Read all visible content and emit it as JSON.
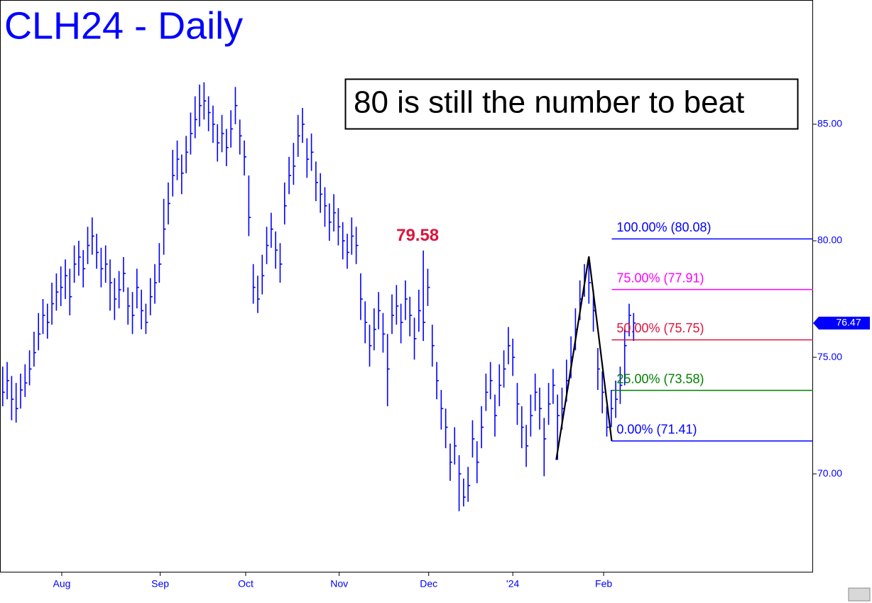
{
  "chart_data": {
    "type": "ohlc",
    "title": "CLH24 - Daily",
    "note": "80 is still the number to beat",
    "color": "#0000ff",
    "xlim": [
      -0.6,
      181.1
    ],
    "ylim": [
      65.8,
      90.33
    ],
    "yticks": [
      {
        "value": 70,
        "label": "70.00"
      },
      {
        "value": 75,
        "label": "75.00"
      },
      {
        "value": 80,
        "label": "80.00"
      },
      {
        "value": 85,
        "label": "85.00"
      }
    ],
    "xticks": [
      {
        "value": 13.2,
        "label": "Aug"
      },
      {
        "value": 35.2,
        "label": "Sep"
      },
      {
        "value": 54.3,
        "label": "Oct"
      },
      {
        "value": 75.2,
        "label": "Nov"
      },
      {
        "value": 95.2,
        "label": "Dec"
      },
      {
        "value": 114,
        "label": "'24"
      },
      {
        "value": 134.3,
        "label": "Feb"
      }
    ],
    "high": [
      74.6,
      74.8,
      74.2,
      73.9,
      74.3,
      74.7,
      75.3,
      76.1,
      76.9,
      77.5,
      77.3,
      78.2,
      78.6,
      78.9,
      79.2,
      78.8,
      79.8,
      80.0,
      79.6,
      80.6,
      81.0,
      80.3,
      79.7,
      79.8,
      79.2,
      78.4,
      78.7,
      79.3,
      78.0,
      77.8,
      78.8,
      77.9,
      77.3,
      78.4,
      79.0,
      79.9,
      81.8,
      82.5,
      83.9,
      84.3,
      83.7,
      84.5,
      85.5,
      86.2,
      86.7,
      86.8,
      86.2,
      85.8,
      85.0,
      85.4,
      84.8,
      85.6,
      86.6,
      85.2,
      84.3,
      82.8,
      79.0,
      78.5,
      79.4,
      80.6,
      81.2,
      80.4,
      79.9,
      82.5,
      83.6,
      84.2,
      85.4,
      85.7,
      84.4,
      84.6,
      83.4,
      82.9,
      82.3,
      81.6,
      82.0,
      81.4,
      80.8,
      80.3,
      81.0,
      80.6,
      78.6,
      77.4,
      76.4,
      77.1,
      77.8,
      76.9,
      76.0,
      77.7,
      78.1,
      77.3,
      78.3,
      77.6,
      76.7,
      77.9,
      79.58,
      78.8,
      76.4,
      74.8,
      73.6,
      72.8,
      71.3,
      72.0,
      70.8,
      69.8,
      70.3,
      72.3,
      71.4,
      72.9,
      74.3,
      74.8,
      73.4,
      74.7,
      75.3,
      76.3,
      75.8,
      73.9,
      72.9,
      72.1,
      73.4,
      74.3,
      73.7,
      72.4,
      73.9,
      74.5,
      73.4,
      73.7,
      74.9,
      75.9,
      77.1,
      78.3,
      79.0,
      79.2,
      77.9,
      75.4,
      74.4,
      72.9,
      73.6,
      74.0,
      74.6,
      76.2,
      77.3,
      76.9
    ],
    "low": [
      72.9,
      73.2,
      72.3,
      72.2,
      72.8,
      73.3,
      73.8,
      74.6,
      75.3,
      76.0,
      75.8,
      76.4,
      77.0,
      77.2,
      77.5,
      76.8,
      78.2,
      78.5,
      78.0,
      79.0,
      79.4,
      78.8,
      78.0,
      78.2,
      77.0,
      76.6,
      77.1,
      77.8,
      76.4,
      76.0,
      77.1,
      76.2,
      76.0,
      76.8,
      77.3,
      78.2,
      79.4,
      80.7,
      81.9,
      82.6,
      82.0,
      82.9,
      83.7,
      84.4,
      84.9,
      85.2,
      84.7,
      84.2,
      83.4,
      83.8,
      83.2,
      84.0,
      85.0,
      83.7,
      82.8,
      80.2,
      77.3,
      76.9,
      77.7,
      79.0,
      79.7,
      78.8,
      78.2,
      80.7,
      82.0,
      82.4,
      83.6,
      84.2,
      82.7,
      83.0,
      81.7,
      81.2,
      80.6,
      80.0,
      80.4,
      79.8,
      79.2,
      78.8,
      79.4,
      79.0,
      76.6,
      75.6,
      74.6,
      75.3,
      76.2,
      75.2,
      72.9,
      76.0,
      76.4,
      75.6,
      76.6,
      75.9,
      74.9,
      76.1,
      75.7,
      77.2,
      74.6,
      73.2,
      71.9,
      71.1,
      69.7,
      70.4,
      68.4,
      68.6,
      68.8,
      70.7,
      69.6,
      71.1,
      72.7,
      73.2,
      71.6,
      72.9,
      73.7,
      74.7,
      74.2,
      72.1,
      71.1,
      70.3,
      71.6,
      72.7,
      71.9,
      69.9,
      72.1,
      73.0,
      70.6,
      71.9,
      73.1,
      74.1,
      75.3,
      76.6,
      77.6,
      77.3,
      76.1,
      73.6,
      72.6,
      71.6,
      72.0,
      72.4,
      73.0,
      73.8,
      75.9,
      75.7
    ],
    "close": [
      73.5,
      74.0,
      73.2,
      72.8,
      73.6,
      73.9,
      74.5,
      75.2,
      76.0,
      76.8,
      76.5,
      77.3,
      77.8,
      78.0,
      78.5,
      77.6,
      79.0,
      79.3,
      78.8,
      79.8,
      80.2,
      79.5,
      78.8,
      79.0,
      78.2,
      77.5,
      77.9,
      78.6,
      77.2,
      76.8,
      78.0,
      77.0,
      76.5,
      77.6,
      78.2,
      79.0,
      80.5,
      81.6,
      82.8,
      83.5,
      82.9,
      83.8,
      84.6,
      85.2,
      85.8,
      86.0,
      85.5,
      85.0,
      84.2,
      84.6,
      84.0,
      84.8,
      85.8,
      84.5,
      83.6,
      81.0,
      78.0,
      77.5,
      78.5,
      79.8,
      80.5,
      79.6,
      79.0,
      81.5,
      82.8,
      83.2,
      84.5,
      85.0,
      83.5,
      83.8,
      82.5,
      82.0,
      81.5,
      80.8,
      81.2,
      80.6,
      80.0,
      79.5,
      80.2,
      79.8,
      77.5,
      76.5,
      75.5,
      76.2,
      77.0,
      76.0,
      74.5,
      76.8,
      77.2,
      76.5,
      77.5,
      76.8,
      75.8,
      77.0,
      76.5,
      78.0,
      75.5,
      74.0,
      72.8,
      72.0,
      70.5,
      71.2,
      70.0,
      69.0,
      69.5,
      71.5,
      70.5,
      72.0,
      73.5,
      74.0,
      72.5,
      73.8,
      74.5,
      75.5,
      75.0,
      73.0,
      72.0,
      71.2,
      72.5,
      73.5,
      72.8,
      71.5,
      73.0,
      73.8,
      72.5,
      72.8,
      74.0,
      75.0,
      76.2,
      77.5,
      78.5,
      78.2,
      77.0,
      74.5,
      73.5,
      72.0,
      72.8,
      73.2,
      73.8,
      75.5,
      76.8,
      76.47
    ],
    "peak_index": 94,
    "swing": {
      "x": [
        123.7,
        131,
        136.1
      ],
      "values": [
        70.6,
        79.33,
        71.41
      ],
      "color": "#000000"
    },
    "fib_start": 136.1,
    "levels": [
      {
        "value": 80.08,
        "label": "100.00% (80.08)",
        "color": "#0000ff"
      },
      {
        "value": 77.91,
        "label": "75.00% (77.91)",
        "color": "#ff00ff"
      },
      {
        "value": 75.75,
        "label": "50.00% (75.75)",
        "color": "#dc143c"
      },
      {
        "value": 73.58,
        "label": "25.00% (73.58)",
        "color": "#008000"
      },
      {
        "value": 71.41,
        "label": "0.00% (71.41)",
        "color": "#0000ff"
      }
    ],
    "last_price": 76.47
  }
}
